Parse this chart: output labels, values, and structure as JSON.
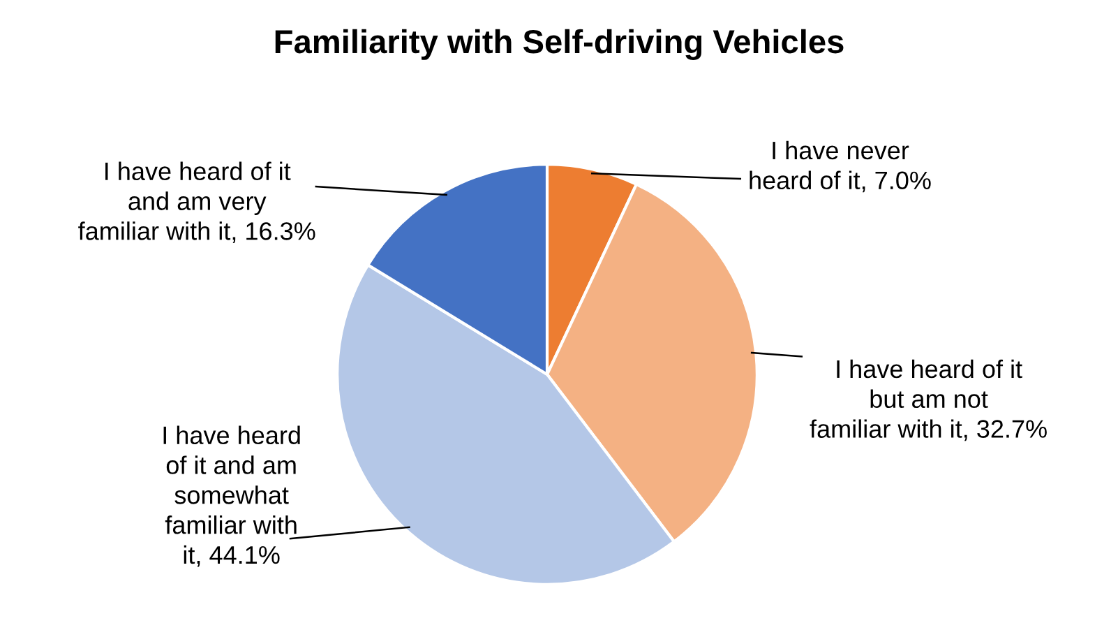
{
  "chart_data": {
    "type": "pie",
    "title": "Familiarity with Self-driving Vehicles",
    "categories": [
      "I have never\nheard of it",
      "I have heard of it\nbut am not\nfamiliar with it",
      "I have heard\nof it and am\nsomewhat\nfamiliar with\nit",
      "I have heard of it\nand am very\nfamiliar with it"
    ],
    "values": [
      7.0,
      32.7,
      44.1,
      16.3
    ],
    "value_labels": [
      "7.0%",
      "32.7%",
      "44.1%",
      "16.3%"
    ],
    "colors": [
      "#ed7d31",
      "#f4b183",
      "#b4c7e7",
      "#4472c4"
    ],
    "legend": false
  }
}
